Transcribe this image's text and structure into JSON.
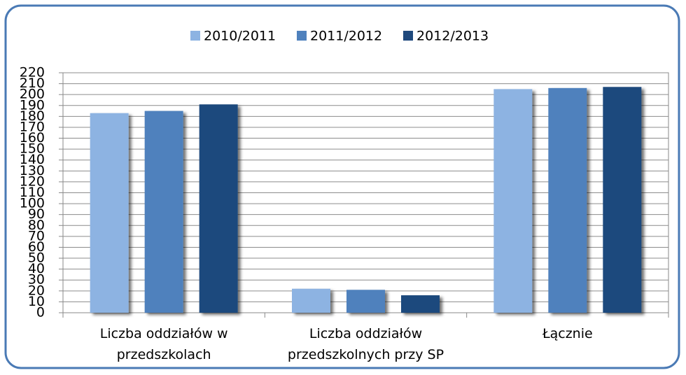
{
  "chart_data": {
    "type": "bar",
    "categories": [
      "Liczba oddziałów w przedszkolach",
      "Liczba oddziałów przedszkolnych przy SP",
      "Łącznie"
    ],
    "series": [
      {
        "name": "2010/2011",
        "color": "#8db3e2",
        "values": [
          183,
          22,
          205
        ]
      },
      {
        "name": "2011/2012",
        "color": "#4f81bd",
        "values": [
          185,
          21,
          206
        ]
      },
      {
        "name": "2012/2013",
        "color": "#1f497d",
        "values": [
          191,
          16,
          207
        ]
      }
    ],
    "ylim": [
      0,
      220
    ],
    "yticks": [
      0,
      10,
      20,
      30,
      40,
      50,
      60,
      70,
      80,
      90,
      100,
      110,
      120,
      130,
      140,
      150,
      160,
      170,
      180,
      190,
      200,
      210,
      220
    ],
    "grid": true,
    "legend": "top"
  }
}
